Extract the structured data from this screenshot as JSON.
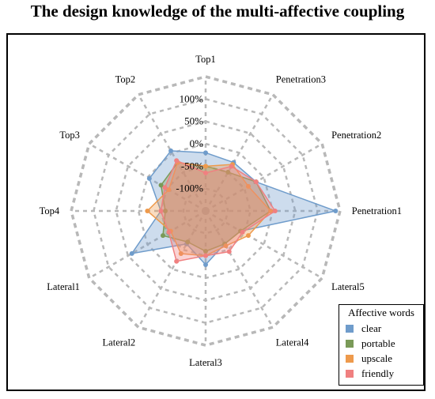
{
  "title": "The design knowledge of the multi-affective coupling",
  "legend": {
    "title": "Affective words"
  },
  "chart_data": {
    "type": "radar",
    "title": "The design knowledge of the multi-affective coupling",
    "axes": [
      "Top1",
      "Penetration3",
      "Penetration2",
      "Penetration1",
      "Lateral5",
      "Lateral4",
      "Lateral3",
      "Lateral2",
      "Lateral1",
      "Top4",
      "Top3",
      "Top2"
    ],
    "radial_ticks": [
      "-100%",
      "-50%",
      "0%",
      "50%",
      "100%"
    ],
    "radial_range": [
      -150,
      150
    ],
    "grid": true,
    "legend_position": "bottom-right",
    "series": [
      {
        "name": "clear",
        "color": "#6f9ccb",
        "values": [
          -20,
          -25,
          -20,
          140,
          -60,
          -65,
          -30,
          -65,
          40,
          -50,
          -5,
          5
        ]
      },
      {
        "name": "portable",
        "color": "#7a9a58",
        "values": [
          -50,
          -50,
          -20,
          -5,
          -60,
          -65,
          -60,
          -70,
          -40,
          -60,
          -35,
          -25
        ]
      },
      {
        "name": "upscale",
        "color": "#ee9a4c",
        "values": [
          -50,
          -30,
          -40,
          -5,
          -40,
          -60,
          -50,
          -40,
          -60,
          -20,
          -55,
          -25
        ]
      },
      {
        "name": "friendly",
        "color": "#f08080",
        "values": [
          -65,
          -35,
          -20,
          5,
          -55,
          -45,
          -50,
          -20,
          -55,
          -50,
          -45,
          -20
        ]
      }
    ]
  }
}
